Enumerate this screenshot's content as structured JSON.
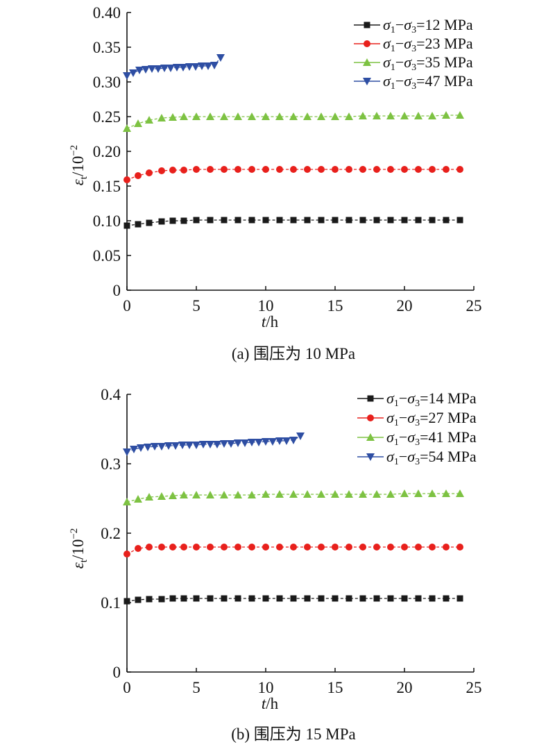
{
  "chart_data": [
    {
      "type": "line",
      "caption": "(a) 围压为 10 MPa",
      "xlabel_italic": "t",
      "xlabel_rest": "/h",
      "ylabel_main": "ε",
      "ylabel_sub": "t",
      "ylabel_rest": "/10",
      "ylabel_sup": "−2",
      "xlim": [
        0,
        25
      ],
      "ylim": [
        0,
        0.4
      ],
      "xticks": [
        "0",
        "5",
        "10",
        "15",
        "20",
        "25"
      ],
      "yticks": [
        "0",
        "0.05",
        "0.10",
        "0.15",
        "0.20",
        "0.25",
        "0.30",
        "0.35",
        "0.40"
      ],
      "legend_position": "top-right",
      "series": [
        {
          "name": "σ1−σ3=12 MPa",
          "stress": "12 MPa",
          "color": "#1a1a1a",
          "marker": "square",
          "x": [
            0,
            0.8,
            1.6,
            2.5,
            3.3,
            4.1,
            5.0,
            6.0,
            7.0,
            8.0,
            9.0,
            10.0,
            11.0,
            12.0,
            13.0,
            14.0,
            15.0,
            16.0,
            17.0,
            18.0,
            19.0,
            20.0,
            21.0,
            22.0,
            23.0,
            24.0
          ],
          "values": [
            0.093,
            0.095,
            0.097,
            0.099,
            0.1,
            0.1,
            0.101,
            0.101,
            0.101,
            0.101,
            0.101,
            0.101,
            0.101,
            0.101,
            0.101,
            0.101,
            0.101,
            0.101,
            0.101,
            0.101,
            0.101,
            0.101,
            0.101,
            0.101,
            0.101,
            0.101
          ]
        },
        {
          "name": "σ1−σ3=23 MPa",
          "stress": "23 MPa",
          "color": "#e8201c",
          "marker": "circle",
          "x": [
            0,
            0.8,
            1.6,
            2.5,
            3.3,
            4.1,
            5.0,
            6.0,
            7.0,
            8.0,
            9.0,
            10.0,
            11.0,
            12.0,
            13.0,
            14.0,
            15.0,
            16.0,
            17.0,
            18.0,
            19.0,
            20.0,
            21.0,
            22.0,
            23.0,
            24.0
          ],
          "values": [
            0.159,
            0.165,
            0.169,
            0.172,
            0.173,
            0.173,
            0.174,
            0.174,
            0.174,
            0.174,
            0.174,
            0.174,
            0.174,
            0.174,
            0.174,
            0.174,
            0.174,
            0.174,
            0.174,
            0.174,
            0.174,
            0.174,
            0.174,
            0.174,
            0.174,
            0.174
          ]
        },
        {
          "name": "σ1−σ3=35 MPa",
          "stress": "35 MPa",
          "color": "#7dc242",
          "marker": "triangle-up",
          "x": [
            0,
            0.8,
            1.6,
            2.5,
            3.3,
            4.1,
            5.0,
            6.0,
            7.0,
            8.0,
            9.0,
            10.0,
            11.0,
            12.0,
            13.0,
            14.0,
            15.0,
            16.0,
            17.0,
            18.0,
            19.0,
            20.0,
            21.0,
            22.0,
            23.0,
            24.0
          ],
          "values": [
            0.233,
            0.24,
            0.245,
            0.248,
            0.249,
            0.25,
            0.25,
            0.25,
            0.25,
            0.25,
            0.25,
            0.25,
            0.25,
            0.25,
            0.25,
            0.25,
            0.25,
            0.25,
            0.251,
            0.251,
            0.251,
            0.251,
            0.251,
            0.251,
            0.252,
            0.252
          ]
        },
        {
          "name": "σ1−σ3=47 MPa",
          "stress": "47 MPa",
          "color": "#2e4ea3",
          "marker": "triangle-down",
          "x": [
            0,
            0.45,
            0.9,
            1.35,
            1.8,
            2.25,
            2.7,
            3.15,
            3.6,
            4.05,
            4.5,
            4.95,
            5.4,
            5.85,
            6.3,
            6.75
          ],
          "values": [
            0.309,
            0.313,
            0.317,
            0.318,
            0.319,
            0.319,
            0.32,
            0.32,
            0.321,
            0.321,
            0.322,
            0.322,
            0.323,
            0.323,
            0.324,
            0.335
          ]
        }
      ]
    },
    {
      "type": "line",
      "caption": "(b) 围压为 15 MPa",
      "xlabel_italic": "t",
      "xlabel_rest": "/h",
      "ylabel_main": "ε",
      "ylabel_sub": "t",
      "ylabel_rest": "/10",
      "ylabel_sup": "−2",
      "xlim": [
        0,
        25
      ],
      "ylim": [
        0,
        0.4
      ],
      "xticks": [
        "0",
        "5",
        "10",
        "15",
        "20",
        "25"
      ],
      "yticks": [
        "0",
        "0.1",
        "0.2",
        "0.3",
        "0.4"
      ],
      "legend_position": "top-right",
      "series": [
        {
          "name": "σ1−σ3=14 MPa",
          "stress": "14 MPa",
          "color": "#1a1a1a",
          "marker": "square",
          "x": [
            0,
            0.8,
            1.6,
            2.5,
            3.3,
            4.1,
            5.0,
            6.0,
            7.0,
            8.0,
            9.0,
            10.0,
            11.0,
            12.0,
            13.0,
            14.0,
            15.0,
            16.0,
            17.0,
            18.0,
            19.0,
            20.0,
            21.0,
            22.0,
            23.0,
            24.0
          ],
          "values": [
            0.102,
            0.104,
            0.105,
            0.105,
            0.106,
            0.106,
            0.106,
            0.106,
            0.106,
            0.106,
            0.106,
            0.106,
            0.106,
            0.106,
            0.106,
            0.106,
            0.106,
            0.106,
            0.106,
            0.106,
            0.106,
            0.106,
            0.106,
            0.106,
            0.106,
            0.106
          ]
        },
        {
          "name": "σ1−σ3=27 MPa",
          "stress": "27 MPa",
          "color": "#e8201c",
          "marker": "circle",
          "x": [
            0,
            0.8,
            1.6,
            2.5,
            3.3,
            4.1,
            5.0,
            6.0,
            7.0,
            8.0,
            9.0,
            10.0,
            11.0,
            12.0,
            13.0,
            14.0,
            15.0,
            16.0,
            17.0,
            18.0,
            19.0,
            20.0,
            21.0,
            22.0,
            23.0,
            24.0
          ],
          "values": [
            0.17,
            0.178,
            0.18,
            0.18,
            0.18,
            0.18,
            0.18,
            0.18,
            0.18,
            0.18,
            0.18,
            0.18,
            0.18,
            0.18,
            0.18,
            0.18,
            0.18,
            0.18,
            0.18,
            0.18,
            0.18,
            0.18,
            0.18,
            0.18,
            0.18,
            0.18
          ]
        },
        {
          "name": "σ1−σ3=41 MPa",
          "stress": "41 MPa",
          "color": "#7dc242",
          "marker": "triangle-up",
          "x": [
            0,
            0.8,
            1.6,
            2.5,
            3.3,
            4.1,
            5.0,
            6.0,
            7.0,
            8.0,
            9.0,
            10.0,
            11.0,
            12.0,
            13.0,
            14.0,
            15.0,
            16.0,
            17.0,
            18.0,
            19.0,
            20.0,
            21.0,
            22.0,
            23.0,
            24.0
          ],
          "values": [
            0.245,
            0.249,
            0.252,
            0.253,
            0.254,
            0.255,
            0.255,
            0.255,
            0.255,
            0.255,
            0.255,
            0.256,
            0.256,
            0.256,
            0.256,
            0.256,
            0.256,
            0.256,
            0.256,
            0.256,
            0.256,
            0.257,
            0.257,
            0.257,
            0.257,
            0.257
          ]
        },
        {
          "name": "σ1−σ3=54 MPa",
          "stress": "54 MPa",
          "color": "#2e4ea3",
          "marker": "triangle-down",
          "x": [
            0,
            0.5,
            1.0,
            1.5,
            2.0,
            2.5,
            3.0,
            3.5,
            4.0,
            4.5,
            5.0,
            5.5,
            6.0,
            6.5,
            7.0,
            7.5,
            8.0,
            8.5,
            9.0,
            9.5,
            10.0,
            10.5,
            11.0,
            11.5,
            12.0,
            12.5
          ],
          "values": [
            0.317,
            0.321,
            0.323,
            0.324,
            0.325,
            0.325,
            0.326,
            0.326,
            0.327,
            0.327,
            0.327,
            0.328,
            0.328,
            0.328,
            0.329,
            0.329,
            0.33,
            0.33,
            0.331,
            0.331,
            0.332,
            0.332,
            0.333,
            0.333,
            0.334,
            0.34
          ]
        }
      ]
    }
  ]
}
